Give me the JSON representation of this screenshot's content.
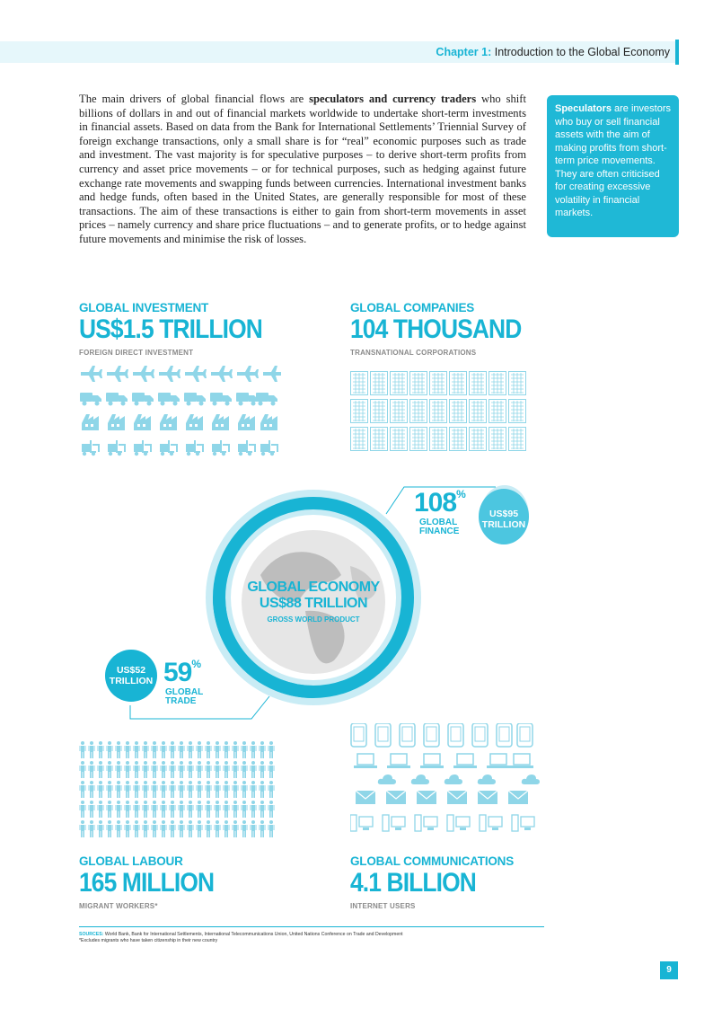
{
  "header": {
    "chapter_label": "Chapter 1:",
    "chapter_title": "Introduction to the Global Economy"
  },
  "body": {
    "p1": "The main drivers of global financial flows are ",
    "p1_bold": "speculators and currency traders",
    "p2": " who shift billions of dollars in and out of financial markets worldwide to undertake short-term investments in financial assets. Based on data from the Bank for International Settlements’ Triennial Survey of foreign exchange transactions, only a small share is for “real” economic purposes such as trade and investment. The vast majority is for speculative purposes – to derive short-term profits from currency and asset price movements – or for technical purposes, such as hedging against future exchange rate movements and swapping funds between currencies. International investment banks and hedge funds, often based in the United States, are generally responsible for most of these transactions. The aim of these transactions is either to gain from short-term movements in asset prices – namely currency and share price fluctuations – and to generate profits, or to hedge against future movements and minimise the risk of losses."
  },
  "sidebar": {
    "term": "Speculators",
    "definition": " are investors who buy or sell financial assets with the aim of making profits from short-term price movements. They are often criticised for creating excessive volatility in financial markets."
  },
  "investment": {
    "label": "GLOBAL INVESTMENT",
    "value": "US$1.5 TRILLION",
    "sub": "FOREIGN DIRECT INVESTMENT"
  },
  "companies": {
    "label": "GLOBAL COMPANIES",
    "value": "104 THOUSAND",
    "sub": "TRANSNATIONAL CORPORATIONS"
  },
  "economy": {
    "label": "GLOBAL ECONOMY",
    "value": "US$88 TRILLION",
    "sub": "GROSS WORLD PRODUCT"
  },
  "finance": {
    "percent": "108",
    "pct_sign": "%",
    "label1": "GLOBAL",
    "label2": "FINANCE",
    "bubble1": "US$95",
    "bubble2": "TRILLION",
    "fraction": 1.08
  },
  "trade": {
    "percent": "59",
    "pct_sign": "%",
    "label1": "GLOBAL",
    "label2": "TRADE",
    "bubble1": "US$52",
    "bubble2": "TRILLION",
    "fraction": 0.59
  },
  "labour": {
    "label": "GLOBAL LABOUR",
    "value": "165 MILLION",
    "sub": "MIGRANT WORKERS*"
  },
  "communications": {
    "label": "GLOBAL COMMUNICATIONS",
    "value": "4.1 BILLION",
    "sub": "INTERNET USERS"
  },
  "footer": {
    "sources_label": "SOURCES:",
    "sources": " World Bank, Bank for International Settlements, International Telecommunications Union, United Nations Conference on Trade and Development",
    "note": "*Excludes migrants who have taken citizenship in their new country"
  },
  "page_number": "9",
  "colors": {
    "accent": "#18b4d4",
    "light": "#c9ecf5",
    "pale": "#e6f7fb"
  },
  "icons": {
    "investment": [
      "plane-icon",
      "truck-icon",
      "factory-icon",
      "forklift-icon"
    ],
    "companies": "building-icon",
    "labour": "person-icon",
    "communications": [
      "phone-icon",
      "laptop-icon",
      "cloud-icon",
      "mail-icon",
      "computer-icon"
    ]
  }
}
